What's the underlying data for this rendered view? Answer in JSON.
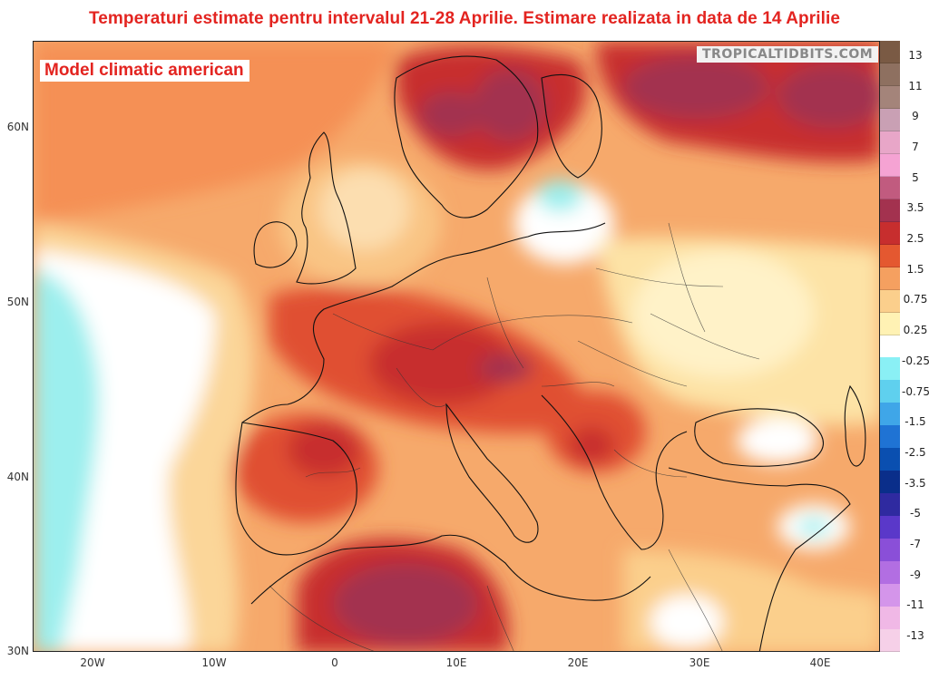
{
  "title": "Temperaturi estimate pentru intervalul 21-28 Aprilie. Estimare realizata in data de 14 Aprilie",
  "subtitle": "Model climatic american",
  "credit": "TROPICALTIDBITS.COM",
  "lat_labels": [
    "60N",
    "50N",
    "40N",
    "30N"
  ],
  "lon_labels": [
    "20W",
    "10W",
    "0",
    "10E",
    "20E",
    "30E",
    "40E"
  ],
  "colorbar": {
    "labels": [
      "13",
      "11",
      "9",
      "7",
      "5",
      "3.5",
      "2.5",
      "1.5",
      "0.75",
      "0.25",
      "-0.25",
      "-0.75",
      "-1.5",
      "-2.5",
      "-3.5",
      "-5",
      "-7",
      "-9",
      "-11",
      "-13"
    ],
    "colors": [
      "#7a5a44",
      "#8e7060",
      "#a4847a",
      "#c9a0b4",
      "#e8a6c8",
      "#f5a3d3",
      "#c15b7f",
      "#a3324f",
      "#c72e2e",
      "#e45830",
      "#f5a060",
      "#fbcf8c",
      "#fff2b4",
      "#ffffff",
      "#8af0f5",
      "#5fd0ee",
      "#3fa6e8",
      "#1f73d4",
      "#0a4fb0",
      "#0a2e8a",
      "#2f2aa0",
      "#5a38c9",
      "#8a4fd8",
      "#b26ee2",
      "#d495ea",
      "#f0b8e6",
      "#f6d0e8"
    ]
  },
  "map": {
    "region": "Europe, North Africa, Middle East",
    "variable": "temperature anomaly",
    "units": "°C"
  }
}
